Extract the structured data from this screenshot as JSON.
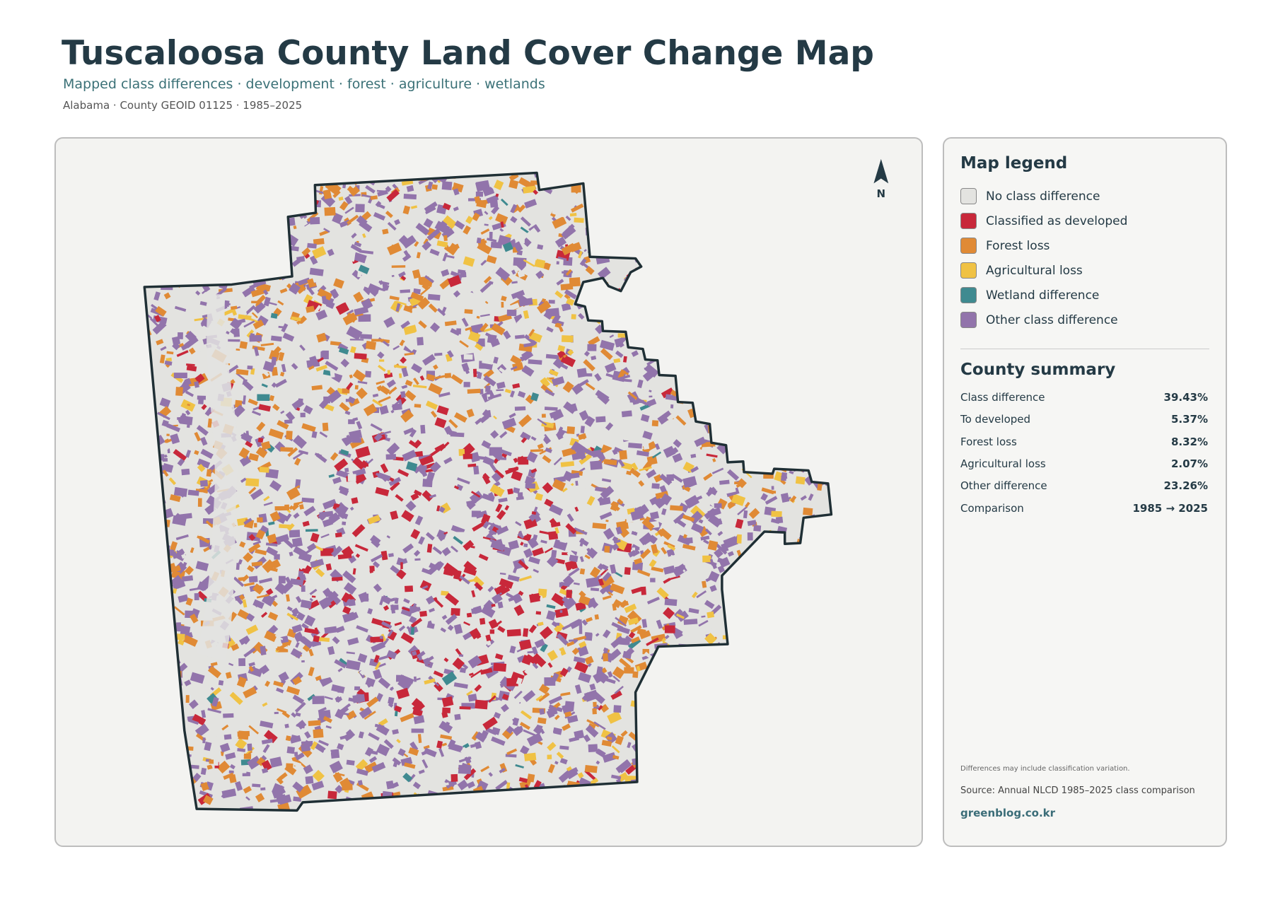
{
  "header": {
    "title": "Tuscaloosa County Land Cover Change Map",
    "subtitle": "Mapped class differences · development · forest · agriculture · wetlands",
    "meta": "Alabama · County GEOID 01125 · 1985–2025"
  },
  "map": {
    "north_label": "N"
  },
  "legend": {
    "title": "Map legend",
    "items": [
      {
        "label": "No class difference",
        "color": "#e3e3e0"
      },
      {
        "label": "Classified as developed",
        "color": "#c8283a"
      },
      {
        "label": "Forest loss",
        "color": "#e08a35"
      },
      {
        "label": "Agricultural loss",
        "color": "#f0c244"
      },
      {
        "label": "Wetland difference",
        "color": "#3f8a90"
      },
      {
        "label": "Other class difference",
        "color": "#9274ab"
      }
    ]
  },
  "summary": {
    "title": "County summary",
    "rows": [
      [
        "Class difference",
        "39.43%"
      ],
      [
        "To developed",
        "5.37%"
      ],
      [
        "Forest loss",
        "8.32%"
      ],
      [
        "Agricultural loss",
        "2.07%"
      ],
      [
        "Other difference",
        "23.26%"
      ],
      [
        "Comparison",
        "1985 → 2025"
      ]
    ]
  },
  "footer": {
    "note": "Differences may include classification variation.",
    "source": "Source: Annual NLCD 1985–2025 class comparison",
    "site": "greenblog.co.kr"
  }
}
